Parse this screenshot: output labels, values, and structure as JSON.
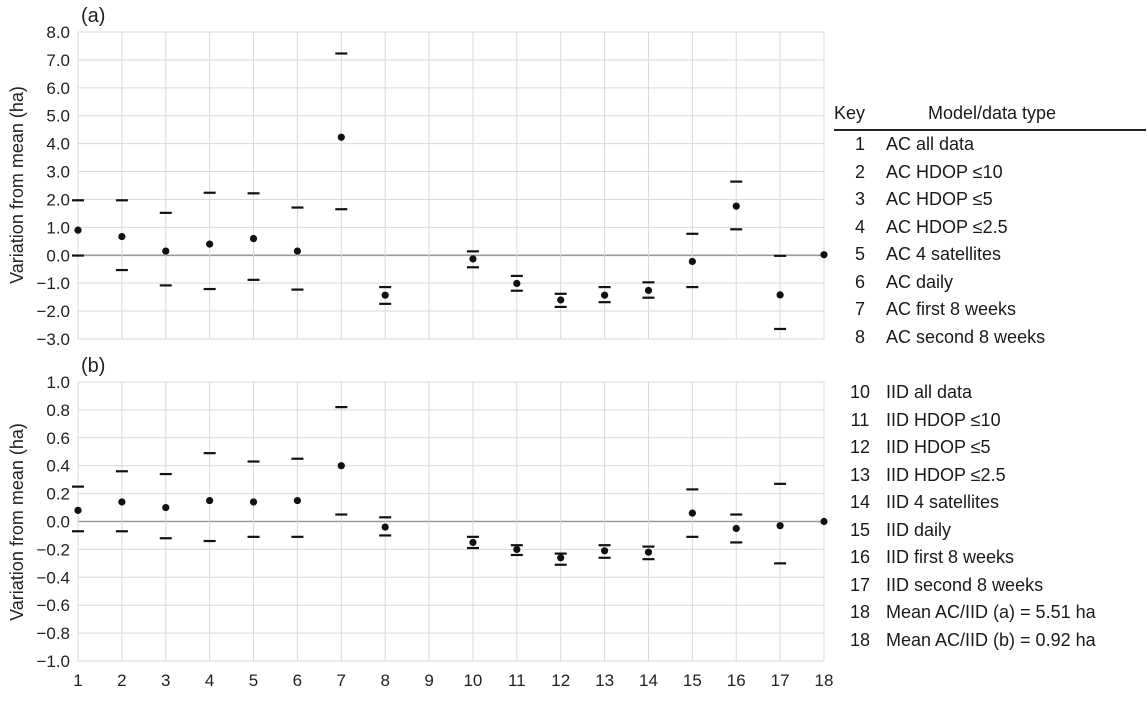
{
  "chart_data": [
    {
      "panel": "(a)",
      "type": "scatter",
      "ylabel": "Variation from mean (ha)",
      "ylim": [
        -3.0,
        8.0
      ],
      "yticks": [
        "8.0",
        "7.0",
        "6.0",
        "5.0",
        "4.0",
        "3.0",
        "2.0",
        "1.0",
        "0.0",
        "−1.0",
        "−2.0",
        "−3.0"
      ],
      "ytick_values": [
        8,
        7,
        6,
        5,
        4,
        3,
        2,
        1,
        0,
        -1,
        -2,
        -3
      ],
      "xlim": [
        1,
        18
      ],
      "show_xtick_labels": false,
      "x": [
        1,
        2,
        3,
        4,
        5,
        6,
        7,
        8,
        10,
        11,
        12,
        13,
        14,
        15,
        16,
        17,
        18
      ],
      "mean": [
        0.9,
        0.67,
        0.15,
        0.4,
        0.6,
        0.15,
        4.23,
        -1.43,
        -0.13,
        -1.01,
        -1.6,
        -1.43,
        -1.26,
        -0.22,
        1.76,
        -1.42,
        0.02
      ],
      "upper": [
        1.97,
        1.97,
        1.52,
        2.24,
        2.22,
        1.71,
        7.23,
        -1.14,
        0.14,
        -0.74,
        -1.38,
        -1.14,
        -0.97,
        0.77,
        2.64,
        -0.02,
        null
      ],
      "lower": [
        -0.01,
        -0.53,
        -1.08,
        -1.21,
        -0.88,
        -1.23,
        1.65,
        -1.74,
        -0.43,
        -1.27,
        -1.85,
        -1.68,
        -1.52,
        -1.14,
        0.93,
        -2.64,
        null
      ]
    },
    {
      "panel": "(b)",
      "type": "scatter",
      "ylabel": "Variation from mean (ha)",
      "ylim": [
        -1.0,
        1.0
      ],
      "yticks": [
        "1.0",
        "0.8",
        "0.6",
        "0.4",
        "0.2",
        "0.0",
        "−0.2",
        "−0.4",
        "−0.6",
        "−0.8",
        "−1.0"
      ],
      "ytick_values": [
        1,
        0.8,
        0.6,
        0.4,
        0.2,
        0,
        -0.2,
        -0.4,
        -0.6,
        -0.8,
        -1
      ],
      "xlim": [
        1,
        18
      ],
      "xticks": [
        "1",
        "2",
        "3",
        "4",
        "5",
        "6",
        "7",
        "8",
        "9",
        "10",
        "11",
        "12",
        "13",
        "14",
        "15",
        "16",
        "17",
        "18"
      ],
      "x": [
        1,
        2,
        3,
        4,
        5,
        6,
        7,
        8,
        10,
        11,
        12,
        13,
        14,
        15,
        16,
        17,
        18
      ],
      "mean": [
        0.08,
        0.14,
        0.1,
        0.15,
        0.14,
        0.15,
        0.4,
        -0.04,
        -0.15,
        -0.2,
        -0.26,
        -0.21,
        -0.22,
        0.06,
        -0.05,
        -0.03,
        0.0
      ],
      "upper": [
        0.25,
        0.36,
        0.34,
        0.49,
        0.43,
        0.45,
        0.82,
        0.03,
        -0.11,
        -0.17,
        -0.23,
        -0.17,
        -0.18,
        0.23,
        0.05,
        0.27,
        null
      ],
      "lower": [
        -0.07,
        -0.07,
        -0.12,
        -0.14,
        -0.11,
        -0.11,
        0.05,
        -0.1,
        -0.19,
        -0.24,
        -0.31,
        -0.26,
        -0.27,
        -0.11,
        -0.15,
        -0.3,
        null
      ]
    }
  ],
  "key": {
    "col_key": "Key",
    "col_model": "Model/data type",
    "group_a": [
      {
        "k": "1",
        "m": "AC all data"
      },
      {
        "k": "2",
        "m": "AC HDOP ≤10"
      },
      {
        "k": "3",
        "m": "AC HDOP ≤5"
      },
      {
        "k": "4",
        "m": "AC HDOP ≤2.5"
      },
      {
        "k": "5",
        "m": "AC 4 satellites"
      },
      {
        "k": "6",
        "m": "AC daily"
      },
      {
        "k": "7",
        "m": "AC first 8 weeks"
      },
      {
        "k": "8",
        "m": "AC second 8 weeks"
      }
    ],
    "group_b": [
      {
        "k": "10",
        "m": "IID all data"
      },
      {
        "k": "11",
        "m": "IID HDOP ≤10"
      },
      {
        "k": "12",
        "m": "IID HDOP ≤5"
      },
      {
        "k": "13",
        "m": "IID HDOP ≤2.5"
      },
      {
        "k": "14",
        "m": "IID 4 satellites"
      },
      {
        "k": "15",
        "m": "IID daily"
      },
      {
        "k": "16",
        "m": "IID first 8 weeks"
      },
      {
        "k": "17",
        "m": "IID second 8 weeks"
      },
      {
        "k": "18",
        "m": "Mean AC/IID (a) = 5.51 ha"
      },
      {
        "k": "18",
        "m": "Mean AC/IID (b) = 0.92 ha"
      }
    ]
  },
  "colors": {
    "grid": "#d9d9d9",
    "zero_line": "#9a9a9a",
    "marks": "#111111"
  }
}
